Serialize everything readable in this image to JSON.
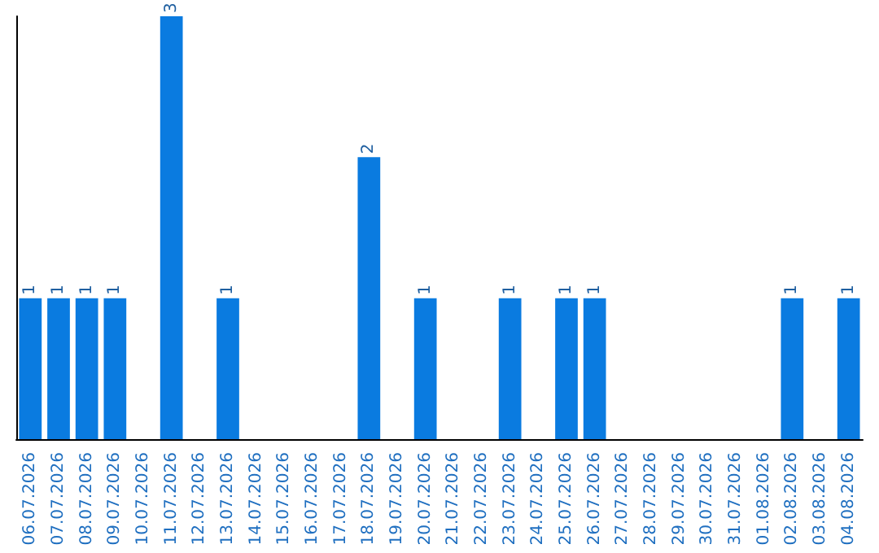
{
  "chart_data": {
    "type": "bar",
    "categories": [
      "06.07.2026",
      "07.07.2026",
      "08.07.2026",
      "09.07.2026",
      "10.07.2026",
      "11.07.2026",
      "12.07.2026",
      "13.07.2026",
      "14.07.2026",
      "15.07.2026",
      "16.07.2026",
      "17.07.2026",
      "18.07.2026",
      "19.07.2026",
      "20.07.2026",
      "21.07.2026",
      "22.07.2026",
      "23.07.2026",
      "24.07.2026",
      "25.07.2026",
      "26.07.2026",
      "27.07.2026",
      "28.07.2026",
      "29.07.2026",
      "30.07.2026",
      "31.07.2026",
      "01.08.2026",
      "02.08.2026",
      "03.08.2026",
      "04.08.2026"
    ],
    "values": [
      1,
      1,
      1,
      1,
      0,
      3,
      0,
      1,
      0,
      0,
      0,
      0,
      2,
      0,
      1,
      0,
      0,
      1,
      0,
      1,
      1,
      0,
      0,
      0,
      0,
      0,
      0,
      1,
      0,
      1
    ],
    "value_labels": [
      "1",
      "1",
      "1",
      "1",
      null,
      "3",
      null,
      "1",
      null,
      null,
      null,
      null,
      "2",
      null,
      "1",
      null,
      null,
      "1",
      null,
      "1",
      "1",
      null,
      null,
      null,
      null,
      null,
      null,
      "1",
      null,
      "1"
    ],
    "color": "#0a7be0",
    "grid": false,
    "tick_labels": "x"
  }
}
